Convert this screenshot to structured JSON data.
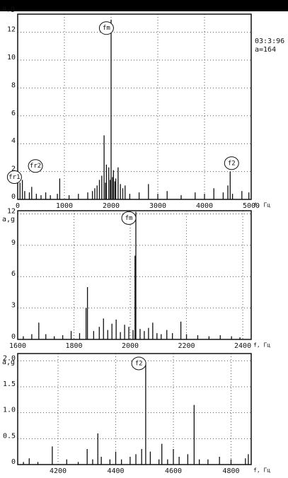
{
  "side_info": {
    "date": "03:3:96",
    "param": "a=164"
  },
  "chart_data": [
    {
      "type": "spectrum",
      "y_label": "a,g",
      "x_label": "f, Гц",
      "color": "#111111",
      "grid": true,
      "xlim": [
        0,
        5000
      ],
      "xticks": [
        0,
        1000,
        2000,
        3000,
        4000,
        5000
      ],
      "ylim": [
        0,
        13.3
      ],
      "yticks": [
        0,
        2,
        4,
        6,
        8,
        10,
        12
      ],
      "x": [
        50,
        100,
        150,
        250,
        300,
        400,
        500,
        600,
        700,
        850,
        900,
        1100,
        1300,
        1500,
        1600,
        1650,
        1700,
        1750,
        1800,
        1850,
        1880,
        1900,
        1950,
        1980,
        2000,
        2030,
        2050,
        2080,
        2100,
        2150,
        2200,
        2250,
        2300,
        2400,
        2600,
        2800,
        3000,
        3200,
        3500,
        3800,
        4000,
        4200,
        4400,
        4500,
        4550,
        4600,
        4800,
        4950
      ],
      "values": [
        1.2,
        1.4,
        0.6,
        0.5,
        0.9,
        0.4,
        0.3,
        0.5,
        0.3,
        0.4,
        1.5,
        0.3,
        0.4,
        0.5,
        0.6,
        0.8,
        1.0,
        1.4,
        1.7,
        4.6,
        1.2,
        2.5,
        2.3,
        1.4,
        12.9,
        1.6,
        2.1,
        1.3,
        1.5,
        2.3,
        1.1,
        0.8,
        1.0,
        0.4,
        0.5,
        1.1,
        0.4,
        0.6,
        0.3,
        0.5,
        0.4,
        0.8,
        0.5,
        1.0,
        2.0,
        0.4,
        0.6,
        0.5
      ],
      "annotations": [
        {
          "text": "fm",
          "x": 1900,
          "y": 12.3
        },
        {
          "text": "fr1",
          "x": -70,
          "y": 1.6
        },
        {
          "text": "fr2",
          "x": 380,
          "y": 2.4
        },
        {
          "text": "f2",
          "x": 4580,
          "y": 2.6
        }
      ]
    },
    {
      "type": "spectrum",
      "y_label": "a,g",
      "x_label": "f, Гц",
      "color": "#111111",
      "grid": true,
      "xlim": [
        1600,
        2430
      ],
      "xticks": [
        1600,
        1800,
        2000,
        2200,
        2400
      ],
      "ylim": [
        0,
        12.3
      ],
      "yticks": [
        0,
        3,
        6,
        9,
        12
      ],
      "x": [
        1620,
        1650,
        1675,
        1700,
        1730,
        1760,
        1790,
        1820,
        1843,
        1848,
        1870,
        1890,
        1905,
        1920,
        1935,
        1950,
        1965,
        1980,
        1995,
        2010,
        2017,
        2020,
        2035,
        2050,
        2065,
        2080,
        2095,
        2110,
        2130,
        2150,
        2180,
        2200,
        2240,
        2280,
        2320,
        2360,
        2390
      ],
      "values": [
        0.3,
        0.5,
        1.6,
        0.5,
        0.3,
        0.4,
        0.8,
        0.6,
        3.0,
        5.0,
        0.8,
        1.2,
        2.0,
        0.9,
        1.5,
        1.9,
        0.7,
        1.4,
        1.2,
        0.9,
        8.0,
        12.2,
        1.0,
        0.8,
        1.1,
        1.6,
        0.6,
        0.5,
        0.9,
        0.6,
        1.7,
        0.5,
        0.4,
        0.3,
        0.4,
        0.3,
        0.2
      ],
      "annotations": [
        {
          "text": "fm",
          "x": 1995,
          "y": 11.6
        }
      ]
    },
    {
      "type": "spectrum",
      "y_label": "a,g",
      "x_label": "f, Гц",
      "color": "#111111",
      "grid": true,
      "xlim": [
        4060,
        4870
      ],
      "xticks": [
        4200,
        4400,
        4600,
        4800
      ],
      "ylim": [
        0,
        2.14
      ],
      "yticks": [
        0,
        {
          "value": 0.5,
          "label": "0.5"
        },
        {
          "value": 1,
          "label": "1.0"
        },
        {
          "value": 1.5,
          "label": "1.5"
        },
        {
          "value": 2,
          "label": "2.0"
        }
      ],
      "x": [
        4080,
        4100,
        4130,
        4180,
        4230,
        4270,
        4301,
        4320,
        4338,
        4350,
        4380,
        4400,
        4420,
        4450,
        4470,
        4490,
        4504,
        4520,
        4550,
        4560,
        4580,
        4600,
        4620,
        4650,
        4672,
        4690,
        4720,
        4760,
        4800,
        4850,
        4860
      ],
      "values": [
        0.05,
        0.12,
        0.05,
        0.35,
        0.1,
        0.05,
        0.3,
        0.1,
        0.6,
        0.15,
        0.1,
        0.25,
        0.1,
        0.15,
        0.2,
        0.3,
        1.95,
        0.25,
        0.1,
        0.4,
        0.1,
        0.3,
        0.15,
        0.2,
        1.15,
        0.1,
        0.1,
        0.15,
        0.1,
        0.12,
        0.2
      ],
      "annotations": [
        {
          "text": "f2",
          "x": 4480,
          "y": 1.95
        }
      ]
    }
  ]
}
